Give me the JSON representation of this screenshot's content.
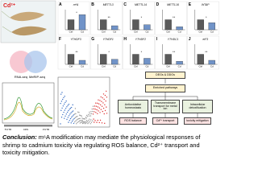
{
  "stressor": "Cd²⁺",
  "venn": {
    "left": "RNA-seq",
    "right": "MeRIP-seq"
  },
  "bar_panels": {
    "categories": [
      "Ctrl",
      "Cd"
    ],
    "ylim": [
      0,
      2
    ],
    "colors": [
      "#5a5a5a",
      "#7093c8"
    ],
    "panels": [
      {
        "letter": "A",
        "gene": "m⁶A",
        "values": [
          1,
          1.5
        ],
        "sig": "*"
      },
      {
        "letter": "B",
        "gene": "METTL3",
        "values": [
          1,
          0.4
        ],
        "sig": "**"
      },
      {
        "letter": "C",
        "gene": "METTL14",
        "values": [
          1,
          0.5
        ],
        "sig": "*"
      },
      {
        "letter": "D",
        "gene": "METTL16",
        "values": [
          1,
          0.3
        ],
        "sig": "**"
      },
      {
        "letter": "E",
        "gene": "WTAP",
        "values": [
          1,
          0.7
        ],
        "sig": "*"
      },
      {
        "letter": "F",
        "gene": "YTHDF3",
        "values": [
          1,
          0.4
        ],
        "sig": "**"
      },
      {
        "letter": "G",
        "gene": "YTHDF1",
        "values": [
          1,
          0.5
        ],
        "sig": "*"
      },
      {
        "letter": "H",
        "gene": "YTHDF2",
        "values": [
          1,
          0.6
        ],
        "sig": "*"
      },
      {
        "letter": "I",
        "gene": "YTHDC1",
        "values": [
          1,
          0.3
        ],
        "sig": "**"
      },
      {
        "letter": "J",
        "gene": "eIF3",
        "values": [
          1,
          0.4
        ],
        "sig": "**"
      }
    ]
  },
  "metagene": {
    "regions": [
      "5'UTR",
      "CDS",
      "3'UTR"
    ]
  },
  "flow": {
    "top": "DEGs & DDGs",
    "middle": "Enriched pathways",
    "processes": [
      "Antioxidative homeostasis",
      "Transmembrane transport for metal ion",
      "Intracellular detoxification"
    ],
    "outcomes": [
      "ROS balance",
      "Cd²⁺ transport",
      "toxicity mitigation"
    ]
  },
  "conclusion": {
    "label": "Conclusion:",
    "text": "m⁶A modification may mediate the physiological responses of shrimp to cadmium toxicity via regulating ROS balance, Cd²⁺ transport and toxicity mitigation."
  }
}
